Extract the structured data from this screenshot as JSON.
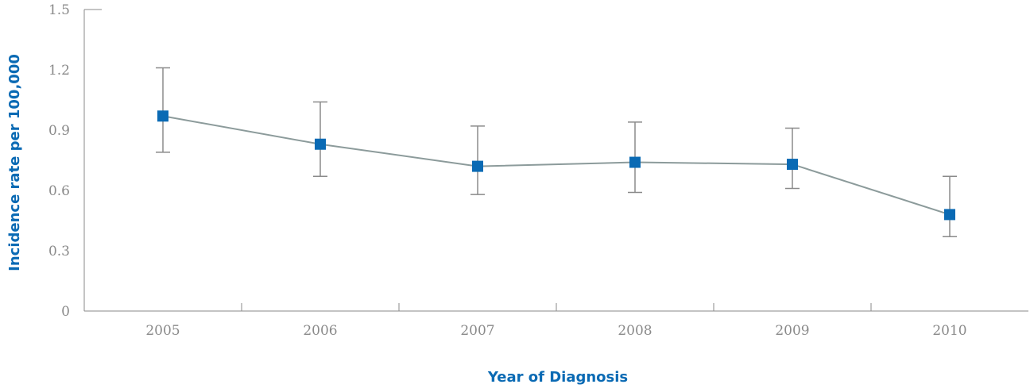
{
  "chart_data": {
    "type": "line",
    "categories": [
      "2005",
      "2006",
      "2007",
      "2008",
      "2009",
      "2010"
    ],
    "values": [
      0.97,
      0.83,
      0.72,
      0.74,
      0.73,
      0.48
    ],
    "error_low": [
      0.79,
      0.67,
      0.58,
      0.59,
      0.61,
      0.37
    ],
    "error_high": [
      1.21,
      1.04,
      0.92,
      0.94,
      0.91,
      0.67
    ],
    "xlabel": "Year of Diagnosis",
    "ylabel": "Incidence rate per 100,000",
    "ylim": [
      0,
      1.5
    ],
    "yticks": [
      "0",
      "0.3",
      "0.6",
      "0.9",
      "1.2",
      "1.5"
    ],
    "grid": false,
    "colors": {
      "marker": "#0a6ab4",
      "line": "#8c9b9b",
      "axis": "#8a8a8a",
      "axis_title": "#0a6ab4",
      "tick_text": "#8a8a8a"
    }
  }
}
